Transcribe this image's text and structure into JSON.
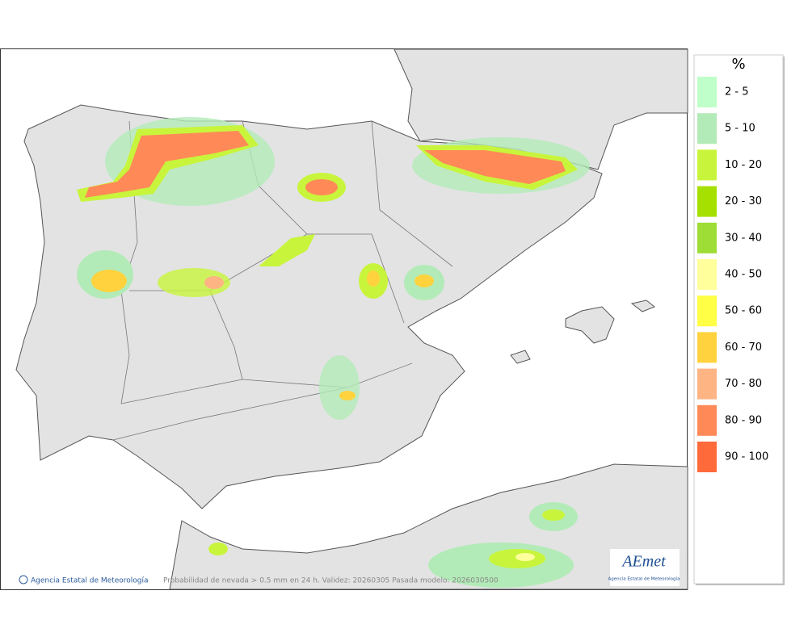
{
  "map": {
    "footer": {
      "credit": "Agencia Estatal de Meteorología",
      "caption": "Probabilidad de nevada > 0.5 mm en 24 h. Validez: 20260305 Pasada modelo: 2026030500"
    },
    "logo": {
      "name": "AEmet",
      "subtitle": "Agencia Estatal de Meteorología"
    },
    "legend": {
      "title": "%",
      "items": [
        {
          "label": "2 - 5",
          "color": "#bfffc9"
        },
        {
          "label": "5 - 10",
          "color": "#b3ebb8"
        },
        {
          "label": "10 - 20",
          "color": "#c8f53c"
        },
        {
          "label": "20 - 30",
          "color": "#a6e000"
        },
        {
          "label": "30 - 40",
          "color": "#9edc36"
        },
        {
          "label": "40 - 50",
          "color": "#ffff9c"
        },
        {
          "label": "50 - 60",
          "color": "#ffff45"
        },
        {
          "label": "60 - 70",
          "color": "#ffd23e"
        },
        {
          "label": "70 - 80",
          "color": "#ffb483"
        },
        {
          "label": "80 - 90",
          "color": "#ff8a57"
        },
        {
          "label": "90 - 100",
          "color": "#ff6a3a"
        }
      ]
    }
  }
}
